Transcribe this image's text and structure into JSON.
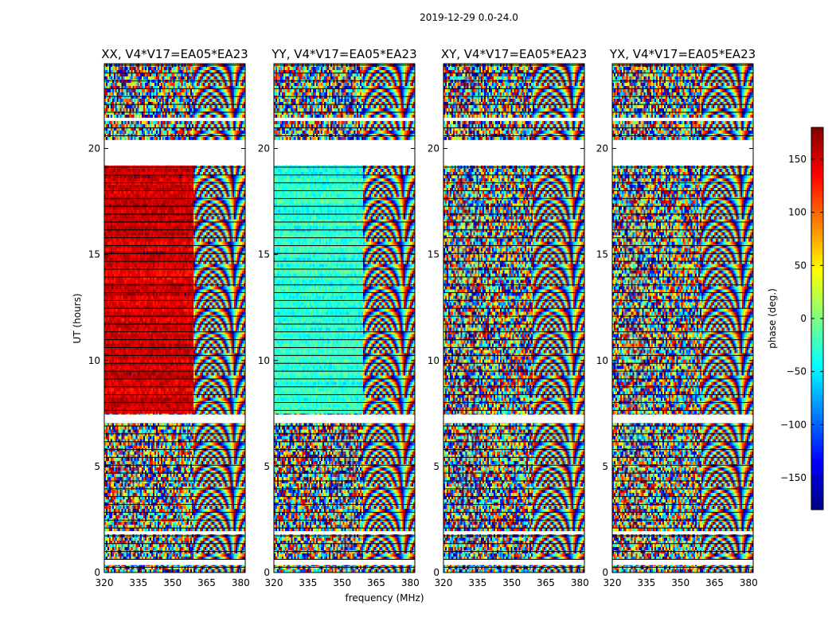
{
  "chart_data": {
    "type": "heatmap",
    "suptitle": "2019-12-29 0.0-24.0",
    "xlabel": "frequency (MHz)",
    "ylabel": "UT (hours)",
    "xlim": [
      320,
      382
    ],
    "ylim": [
      0,
      24
    ],
    "xticks": [
      320,
      335,
      350,
      365,
      380
    ],
    "yticks": [
      0,
      5,
      10,
      15,
      20
    ],
    "panels": [
      {
        "title": "XX, V4*V17=EA05*EA23",
        "dominant_phase_deg": 150,
        "spread_deg": 40,
        "left_fraction_coherent": true
      },
      {
        "title": "YY, V4*V17=EA05*EA23",
        "dominant_phase_deg": -30,
        "spread_deg": 45,
        "left_fraction_coherent": true
      },
      {
        "title": "XY, V4*V17=EA05*EA23",
        "dominant_phase_deg": 0,
        "spread_deg": 180,
        "left_fraction_coherent": false
      },
      {
        "title": "YX, V4*V17=EA05*EA23",
        "dominant_phase_deg": 120,
        "spread_deg": 120,
        "left_fraction_coherent": false
      }
    ],
    "colorbar": {
      "label": "phase (deg.)",
      "range": [
        -180,
        180
      ],
      "ticks": [
        -150,
        -100,
        -50,
        0,
        50,
        100,
        150
      ],
      "cmap": "jet"
    },
    "flagged_hours": [
      [
        0.35,
        0.6
      ],
      [
        1.8,
        1.95
      ],
      [
        7.05,
        7.45
      ],
      [
        19.2,
        20.4
      ],
      [
        21.3,
        21.45
      ]
    ]
  }
}
